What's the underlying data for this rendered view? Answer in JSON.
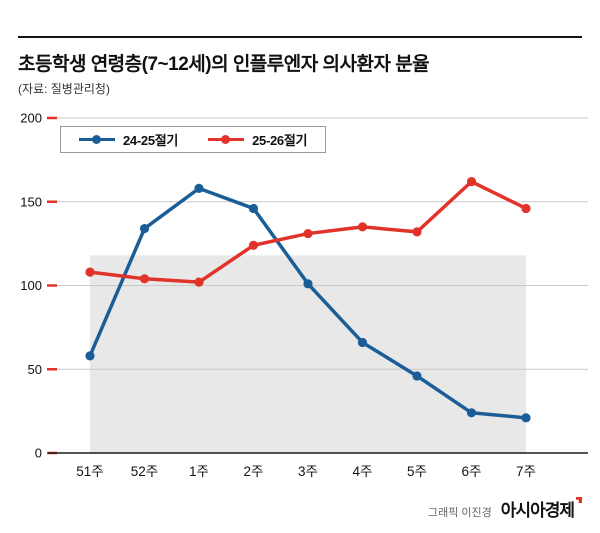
{
  "header": {
    "title": "초등학생 연령층(7~12세)의 인플루엔자 의사환자 분율",
    "source": "(자료: 질병관리청)"
  },
  "footer": {
    "credit": "그래픽 이진경",
    "brand": "아시아경제"
  },
  "colors": {
    "series1": "#1b5e97",
    "series2": "#e2332b",
    "shade": "#e8e8e8",
    "grid": "#c9c9c9",
    "axis": "#1a1a1a",
    "tick": "#e2332b",
    "label": "#111111"
  },
  "chart_data": {
    "type": "line",
    "title": "초등학생 연령층(7~12세)의 인플루엔자 의사환자 분율",
    "categories": [
      "51주",
      "52주",
      "1주",
      "2주",
      "3주",
      "4주",
      "5주",
      "6주",
      "7주"
    ],
    "series": [
      {
        "name": "24-25절기",
        "color": "#1b5e97",
        "values": [
          58,
          134,
          158,
          146,
          101,
          66,
          46,
          24,
          21
        ]
      },
      {
        "name": "25-26절기",
        "color": "#e2332b",
        "values": [
          108,
          104,
          102,
          124,
          131,
          135,
          132,
          162,
          146
        ]
      }
    ],
    "xlabel": "",
    "ylabel": "",
    "ylim": [
      0,
      200
    ],
    "yticks": [
      0,
      50,
      100,
      150,
      200
    ],
    "grid": true,
    "legend_position": "top-left",
    "shaded_region": {
      "x_from": "51주",
      "x_to": "7주",
      "y_from": 0,
      "y_to": 118
    }
  }
}
